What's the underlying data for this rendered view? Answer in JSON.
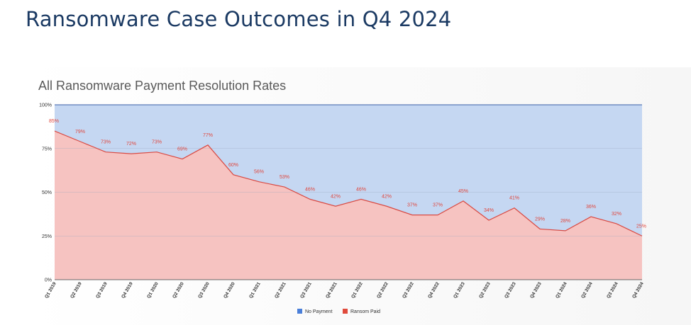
{
  "page": {
    "title": "Ransomware Case Outcomes in Q4 2024"
  },
  "colors": {
    "no_payment_fill": "#c5d7f2",
    "no_payment_legend": "#4a7fd9",
    "ransom_fill": "#f6c3c1",
    "ransom_line": "#d94a43",
    "ransom_legend": "#e04a3c",
    "title": "#1b3a63"
  },
  "chart_data": {
    "type": "area",
    "title": "All Ransomware Payment Resolution Rates",
    "xlabel": "",
    "ylabel": "",
    "ylim": [
      0,
      100
    ],
    "y_ticks": [
      "0%",
      "25%",
      "50%",
      "75%",
      "100%"
    ],
    "categories": [
      "Q1 2019",
      "Q2 2019",
      "Q3 2019",
      "Q4 2019",
      "Q1 2020",
      "Q2 2020",
      "Q3 2020",
      "Q4 2020",
      "Q1 2021",
      "Q2 2021",
      "Q3 2021",
      "Q4 2021",
      "Q1 2022",
      "Q2 2022",
      "Q3 2022",
      "Q4 2022",
      "Q1 2023",
      "Q2 2023",
      "Q3 2023",
      "Q4 2023",
      "Q1 2024",
      "Q2 2024",
      "Q3 2024",
      "Q4 2024"
    ],
    "series": [
      {
        "name": "No Payment",
        "values": [
          15,
          21,
          27,
          28,
          27,
          31,
          23,
          40,
          44,
          47,
          54,
          58,
          54,
          58,
          63,
          63,
          55,
          66,
          59,
          71,
          72,
          64,
          68,
          75
        ]
      },
      {
        "name": "Ransom Paid",
        "values": [
          85,
          79,
          73,
          72,
          73,
          69,
          77,
          60,
          56,
          53,
          46,
          42,
          46,
          42,
          37,
          37,
          45,
          34,
          41,
          29,
          28,
          36,
          32,
          25
        ]
      }
    ],
    "data_labels": [
      "85%",
      "79%",
      "73%",
      "72%",
      "73%",
      "69%",
      "77%",
      "60%",
      "56%",
      "53%",
      "46%",
      "42%",
      "46%",
      "42%",
      "37%",
      "37%",
      "45%",
      "34%",
      "41%",
      "29%",
      "28%",
      "36%",
      "32%",
      "25%"
    ],
    "stacked": true,
    "grid": true,
    "legend": "bottom-center"
  }
}
